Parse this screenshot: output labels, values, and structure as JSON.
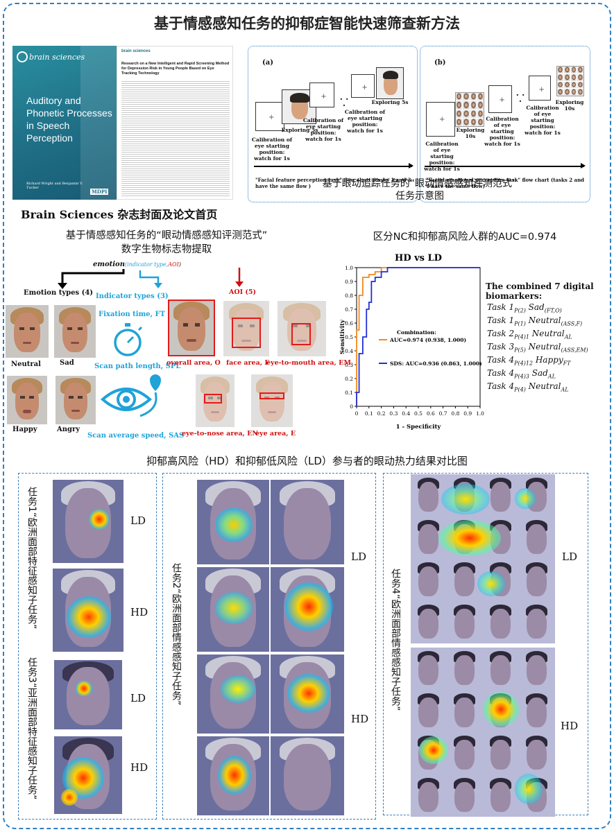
{
  "main_title": "基于情感感知任务的抑郁症智能快速筛查新方法",
  "journal": {
    "cover_logo": "brain sciences",
    "cover_title": "Auditory and Phonetic Processes in Speech Perception",
    "cover_editors": "Richard Wright and Benjamin V. Tucker",
    "cover_publisher": "MDPI",
    "paper_logo": "brain sciences",
    "paper_title": "Research on a New Intelligent and Rapid Screening Method for Depression Risk in Young People Based on Eye Tracking Technology",
    "caption_en": "Brain Sciences",
    "caption_zh": " 杂志封面及论文首页"
  },
  "paradigm": {
    "panel_a": {
      "label": "(a)",
      "cap1": "Calibration of eye starting position: watch for 1s",
      "cap2": "Exploring 5s",
      "cap3": "Calibration of eye starting position: watch for 1s",
      "dots": "· · ·",
      "cap4": "Calibration of eye starting position: watch for 1s",
      "cap5": "Exploring 5s",
      "flow": "\"Facial feature perception task\" flow chart (tasks 1 and 3 have the same flow )"
    },
    "panel_b": {
      "label": "(b)",
      "cap1": "Calibration of eye starting position: watch for 1s",
      "cap2": "Exploring 10s",
      "cap3": "Calibration of eye starting position: watch for 1s",
      "dots": "· · ·",
      "cap4": "Calibration of eye starting position: watch for 1s",
      "cap5": "Exploring 10s",
      "flow": "\"Facial emotional perception task\" flow chart (tasks 2 and 4 have the same flow)"
    },
    "title_line1": "基于眼动追踪任务的“眼动情感感知评测范式”",
    "title_line2": "任务示意图"
  },
  "biomarker": {
    "title_line1": "基于情感感知任务的“眼动情感感知评测范式”",
    "title_line2": "数字生物标志物提取",
    "formula_emotion": "emotion",
    "formula_mid": "(indicator type,",
    "formula_aoi": "AOI",
    "formula_close": ")",
    "emotion_types": "Emotion types (4)",
    "indicator_types": "Indicator types (3)",
    "aoi": "AOI (5)",
    "neutral": "Neutral",
    "sad": "Sad",
    "happy": "Happy",
    "angry": "Angry",
    "fixation": "Fixation time, FT",
    "spl": "Scan path length, SPL",
    "sas": "Scan average speed, SAS",
    "overall": "overall area, O",
    "face": "face area, F",
    "eye_mouth": "eye-to-mouth area, EM",
    "eye_nose": "eye-to-nose area, EN",
    "eye_area": "eye area, E"
  },
  "auc": {
    "section_title": "区分NC和抑郁高风险人群的AUC=0.974",
    "biomarkers_head": "The combined 7 digital biomarkers:",
    "tasks": [
      {
        "main": "Task 1",
        "s1": "P(2)",
        "mid": " Sad",
        "s2": "(FT,O)"
      },
      {
        "main": "Task 1",
        "s1": "P(1)",
        "mid": " Neutral",
        "s2": "(ASS,F)"
      },
      {
        "main": "Task 2",
        "s1": "P(4)1",
        "mid": " Neutral",
        "s2": "AL"
      },
      {
        "main": "Task 3",
        "s1": "P(5)",
        "mid": " Neutral",
        "s2": "(ASS,EM)"
      },
      {
        "main": "Task 4",
        "s1": "P(4)12",
        "mid": " Happy",
        "s2": "FT"
      },
      {
        "main": "Task 4",
        "s1": "P(4)3",
        "mid": " Sad",
        "s2": "AL"
      },
      {
        "main": "Task 4",
        "s1": "P(4)",
        "mid": " Neutral",
        "s2": "AL"
      }
    ]
  },
  "chart_data": {
    "type": "line",
    "title": "HD vs LD",
    "xlabel": "1 - Specificity",
    "ylabel": "Sensitivity",
    "xlim": [
      0,
      1
    ],
    "ylim": [
      0,
      1
    ],
    "xticks": [
      "0",
      "0.1",
      "0.2",
      "0.3",
      "0.4",
      "0.5",
      "0.6",
      "0.7",
      "0.8",
      "0.9",
      "1.0"
    ],
    "yticks": [
      "0",
      "0.1",
      "0.2",
      "0.3",
      "0.4",
      "0.5",
      "0.6",
      "0.7",
      "0.8",
      "0.9",
      "1.0"
    ],
    "legend_position": "center-left",
    "series": [
      {
        "name": "Combination: AUC=0.974 (0.938, 1.000)",
        "color": "#f08a1c",
        "x": [
          0,
          0,
          0.02,
          0.02,
          0.05,
          0.05,
          0.1,
          0.1,
          0.15,
          0.15,
          0.2,
          0.2,
          1.0
        ],
        "y": [
          0,
          0.55,
          0.55,
          0.8,
          0.8,
          0.93,
          0.93,
          0.95,
          0.95,
          0.97,
          0.97,
          1.0,
          1.0
        ]
      },
      {
        "name": "SDS: AUC=0.936 (0.863, 1.000)",
        "color": "#1f2fd8",
        "x": [
          0,
          0,
          0.02,
          0.02,
          0.05,
          0.05,
          0.08,
          0.08,
          0.1,
          0.1,
          0.12,
          0.12,
          0.15,
          0.15,
          0.2,
          0.2,
          0.25,
          0.25,
          1.0
        ],
        "y": [
          0,
          0.1,
          0.1,
          0.38,
          0.38,
          0.5,
          0.5,
          0.7,
          0.7,
          0.75,
          0.75,
          0.9,
          0.9,
          0.93,
          0.93,
          0.97,
          0.97,
          1.0,
          1.0
        ]
      }
    ]
  },
  "heatmaps": {
    "title": "抑郁高风险（HD）和抑郁低风险（LD）参与者的眼动热力结果对比图",
    "task1": "任务1“欧洲面部特征感知子任务”",
    "task3": "任务3“亚洲面部特征感知子任务”",
    "task2": "任务2“欧洲面部情感感知子任务”",
    "task4": "任务4“欧洲面部情感感知子任务”",
    "ld": "LD",
    "hd": "HD"
  }
}
